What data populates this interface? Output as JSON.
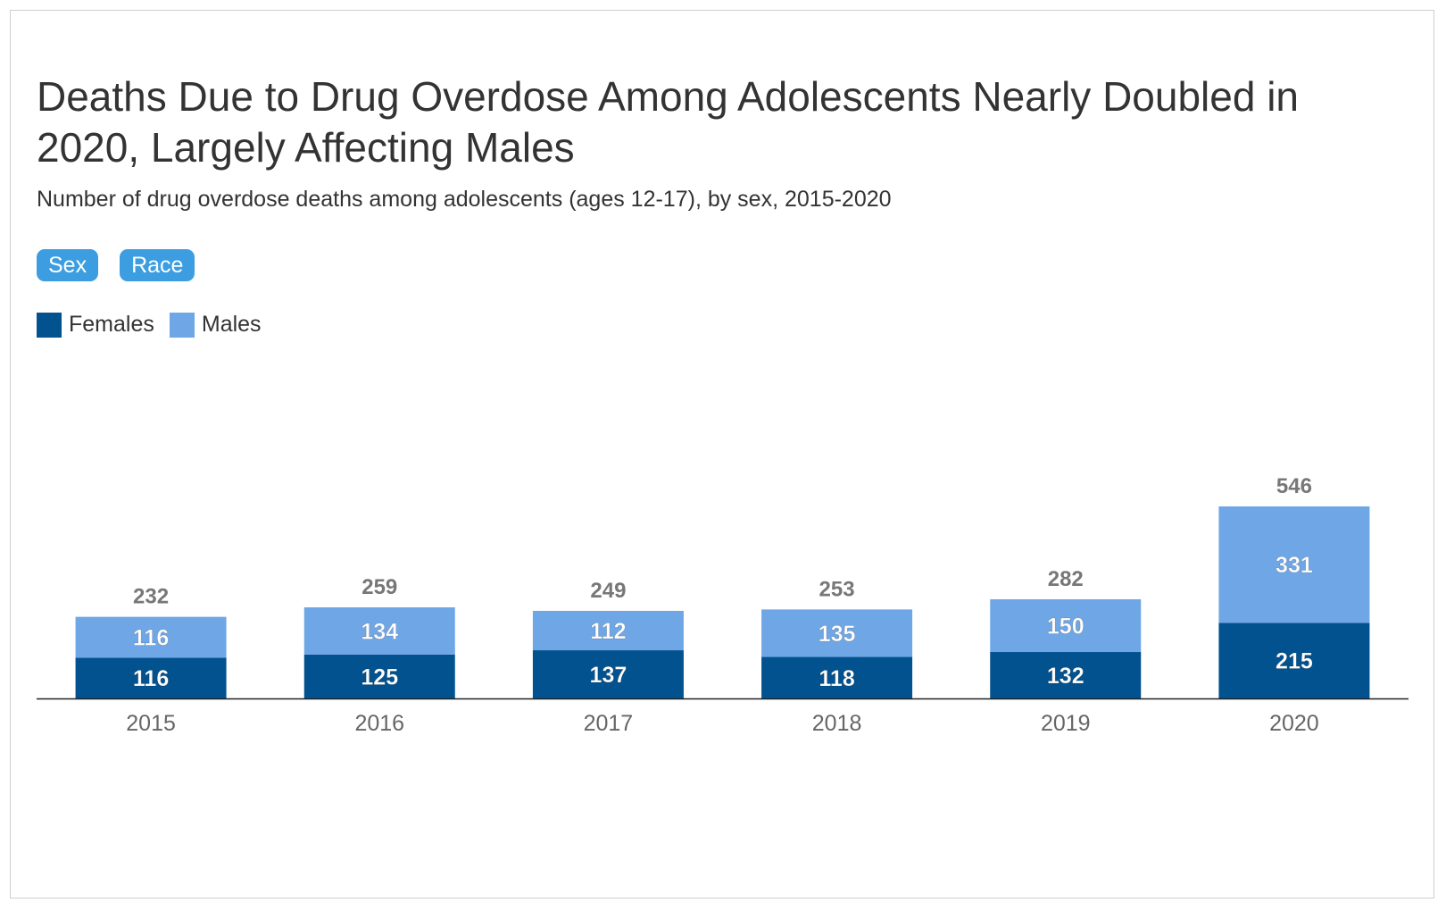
{
  "header": {
    "title": "Deaths Due to Drug Overdose Among Adolescents Nearly Doubled in 2020, Largely Affecting Males",
    "subtitle": "Number of drug overdose deaths among adolescents (ages 12-17), by sex, 2015-2020"
  },
  "tabs": [
    {
      "label": "Sex"
    },
    {
      "label": "Race"
    }
  ],
  "colors": {
    "females": "#02528f",
    "males": "#6fa7e6",
    "tab": "#3c9ee0",
    "total_label": "#777777",
    "axis_label": "#666666"
  },
  "chart_data": {
    "type": "bar",
    "stacked": true,
    "title": "Deaths Due to Drug Overdose Among Adolescents Nearly Doubled in 2020, Largely Affecting Males",
    "subtitle": "Number of drug overdose deaths among adolescents (ages 12-17), by sex, 2015-2020",
    "categories": [
      "2015",
      "2016",
      "2017",
      "2018",
      "2019",
      "2020"
    ],
    "series": [
      {
        "name": "Females",
        "values": [
          116,
          125,
          137,
          118,
          132,
          215
        ]
      },
      {
        "name": "Males",
        "values": [
          116,
          134,
          112,
          135,
          150,
          331
        ]
      }
    ],
    "totals": [
      232,
      259,
      249,
      253,
      282,
      546
    ],
    "xlabel": "",
    "ylabel": "",
    "ylim": [
      0,
      600
    ],
    "grid": false,
    "legend": "top-left",
    "y_axis_visible": false
  }
}
